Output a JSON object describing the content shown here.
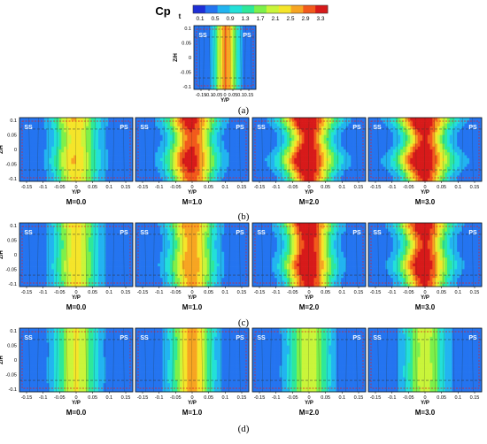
{
  "colorbar": {
    "label": "Cp",
    "subscript": "t",
    "ticks": [
      "0.1",
      "0.5",
      "0.9",
      "1.3",
      "1.7",
      "2.1",
      "2.5",
      "2.9",
      "3.3"
    ],
    "colors": [
      "#1e2fd6",
      "#2474f0",
      "#22b4f0",
      "#23e0d8",
      "#2ee89a",
      "#7df04a",
      "#c9f53a",
      "#f5e52a",
      "#f7a522",
      "#f25a1c",
      "#d71a1a"
    ]
  },
  "y_ticks": [
    "-0.15",
    "-0.1",
    "-0.05",
    "0",
    "0.05",
    "0.1",
    "0.15"
  ],
  "z_ticks": [
    "0.1",
    "0.05",
    "0",
    "-0.05",
    "-0.1"
  ],
  "x_axis_label": "Y/P",
  "y_axis_label": "Z/H",
  "side_labels": {
    "left": "SS",
    "right": "PS"
  },
  "rows": [
    {
      "label": "(a)",
      "panels": [
        {
          "caption": "",
          "peak": 0.78,
          "wave": 0.0,
          "center": 0.02
        }
      ]
    },
    {
      "label": "(b)",
      "panels": [
        {
          "caption": "M=0.0",
          "peak": 0.62,
          "wave": 0.35,
          "center": 0.0
        },
        {
          "caption": "M=1.0",
          "peak": 0.85,
          "wave": 0.55,
          "center": 0.0
        },
        {
          "caption": "M=2.0",
          "peak": 0.92,
          "wave": 0.8,
          "center": 0.0
        },
        {
          "caption": "M=3.0",
          "peak": 0.9,
          "wave": 0.85,
          "center": 0.0
        }
      ]
    },
    {
      "label": "(c)",
      "panels": [
        {
          "caption": "M=0.0",
          "peak": 0.6,
          "wave": 0.15,
          "center": 0.0
        },
        {
          "caption": "M=1.0",
          "peak": 0.72,
          "wave": 0.3,
          "center": 0.0
        },
        {
          "caption": "M=2.0",
          "peak": 0.95,
          "wave": 0.5,
          "center": 0.0
        },
        {
          "caption": "M=3.0",
          "peak": 0.9,
          "wave": 0.6,
          "center": 0.0
        }
      ]
    },
    {
      "label": "(d)",
      "panels": [
        {
          "caption": "M=0.0",
          "peak": 0.58,
          "wave": 0.05,
          "center": 0.0
        },
        {
          "caption": "M=1.0",
          "peak": 0.72,
          "wave": 0.05,
          "center": 0.0
        },
        {
          "caption": "M=2.0",
          "peak": 0.55,
          "wave": 0.05,
          "center": 0.0
        },
        {
          "caption": "M=3.0",
          "peak": 0.52,
          "wave": 0.05,
          "center": 0.0
        }
      ]
    }
  ]
}
